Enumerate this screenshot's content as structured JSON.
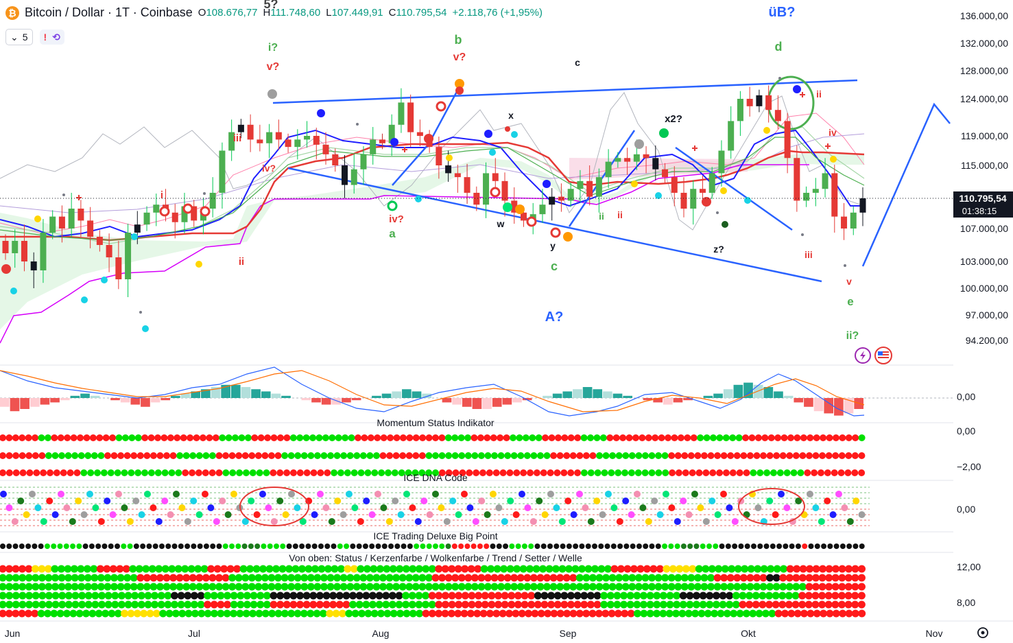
{
  "header": {
    "symbol": "Bitcoin / Dollar · 1T · Coinbase",
    "open_label": "O",
    "open": "108.676,77",
    "high_label": "H",
    "high": "111.748,60",
    "low_label": "L",
    "low": "107.449,91",
    "close_label": "C",
    "close": "110.795,54",
    "change": "+2.118,76 (+1,95%)",
    "indicator_count": "5",
    "icon_alert": "exclamation-icon",
    "icon_sync": "sync-icon"
  },
  "colors": {
    "up": "#089981",
    "down": "#f23645",
    "blue": "#2962ff",
    "green_lbl": "#4caf50",
    "red_lbl": "#e53935",
    "grid": "#f0f3fa"
  },
  "chart_data": [
    {
      "type": "line",
      "name": "price",
      "title": "Bitcoin / Dollar · 1T · Coinbase",
      "x_ticks": [
        "Jun",
        "Jul",
        "Aug",
        "Sep",
        "Okt",
        "Nov"
      ],
      "y_ticks": [
        "136.000,00",
        "132.000,00",
        "128.000,00",
        "124.000,00",
        "119.000,00",
        "115.000,00",
        "107.000,00",
        "103.000,00",
        "100.000,00",
        "97.000,00",
        "94.200,00"
      ],
      "ylim": [
        92000,
        138000
      ],
      "last_price": "110.795,54",
      "countdown": "01:38:15",
      "close_path": [
        104000,
        105500,
        103000,
        102000,
        106500,
        108500,
        107000,
        109500,
        108000,
        106000,
        105000,
        103500,
        101000,
        106500,
        107500,
        109000,
        110000,
        109000,
        107800,
        109800,
        108000,
        109500,
        111500,
        117000,
        119500,
        120500,
        118500,
        118000,
        119500,
        118500,
        117500,
        118500,
        119000,
        117800,
        116500,
        115000,
        112500,
        114500,
        116500,
        118500,
        118000,
        120500,
        123500,
        119500,
        119000,
        117500,
        115000,
        114000,
        113500,
        111500,
        110000,
        114000,
        113000,
        110500,
        109000,
        108000,
        108800,
        110000,
        111000,
        110500,
        112000,
        113000,
        111000,
        113500,
        115500,
        116000,
        115500,
        116500,
        116000,
        114500,
        113500,
        111500,
        109500,
        112000,
        111500,
        114000,
        117000,
        121000,
        124000,
        123000,
        124500,
        122500,
        121000,
        116000,
        110500,
        111500,
        112000,
        114000,
        108500,
        107000,
        109000,
        110795
      ],
      "annotations": [
        {
          "text": "5?",
          "x": 395,
          "y": 12,
          "c": "#444",
          "s": 18
        },
        {
          "text": "i?",
          "x": 398,
          "y": 74,
          "c": "#4caf50",
          "s": 16
        },
        {
          "text": "v?",
          "x": 398,
          "y": 102,
          "c": "#e53935",
          "s": 16
        },
        {
          "text": "iii",
          "x": 346,
          "y": 206,
          "c": "#e53935",
          "s": 15
        },
        {
          "text": "iv?",
          "x": 392,
          "y": 250,
          "c": "#e53935",
          "s": 14
        },
        {
          "text": "i",
          "x": 236,
          "y": 289,
          "c": "#e53935",
          "s": 15
        },
        {
          "text": "ii",
          "x": 352,
          "y": 386,
          "c": "#e53935",
          "s": 15
        },
        {
          "text": "b",
          "x": 668,
          "y": 64,
          "c": "#4caf50",
          "s": 18
        },
        {
          "text": "v?",
          "x": 670,
          "y": 88,
          "c": "#e53935",
          "s": 16
        },
        {
          "text": "c",
          "x": 842,
          "y": 96,
          "c": "#131722",
          "s": 14
        },
        {
          "text": "x",
          "x": 745,
          "y": 173,
          "c": "#131722",
          "s": 14
        },
        {
          "text": "iv?",
          "x": 578,
          "y": 324,
          "c": "#e53935",
          "s": 15
        },
        {
          "text": "a",
          "x": 572,
          "y": 346,
          "c": "#4caf50",
          "s": 17
        },
        {
          "text": "w",
          "x": 730,
          "y": 331,
          "c": "#131722",
          "s": 14
        },
        {
          "text": "y",
          "x": 806,
          "y": 363,
          "c": "#131722",
          "s": 14
        },
        {
          "text": "c",
          "x": 808,
          "y": 394,
          "c": "#4caf50",
          "s": 18
        },
        {
          "text": "A?",
          "x": 808,
          "y": 468,
          "c": "#2962ff",
          "s": 20
        },
        {
          "text": "ii",
          "x": 877,
          "y": 320,
          "c": "#4caf50",
          "s": 14
        },
        {
          "text": "ii",
          "x": 904,
          "y": 318,
          "c": "#e53935",
          "s": 14
        },
        {
          "text": "x2?",
          "x": 982,
          "y": 178,
          "c": "#131722",
          "s": 15
        },
        {
          "text": "z?",
          "x": 1048,
          "y": 368,
          "c": "#131722",
          "s": 14
        },
        {
          "text": "üB?",
          "x": 1140,
          "y": 24,
          "c": "#2962ff",
          "s": 20
        },
        {
          "text": "d",
          "x": 1135,
          "y": 74,
          "c": "#4caf50",
          "s": 18
        },
        {
          "text": "ii",
          "x": 1194,
          "y": 142,
          "c": "#e53935",
          "s": 14
        },
        {
          "text": "iv",
          "x": 1214,
          "y": 198,
          "c": "#e53935",
          "s": 14
        },
        {
          "text": "iii",
          "x": 1179,
          "y": 376,
          "c": "#e53935",
          "s": 14
        },
        {
          "text": "v",
          "x": 1238,
          "y": 415,
          "c": "#e53935",
          "s": 14
        },
        {
          "text": "e",
          "x": 1240,
          "y": 445,
          "c": "#4caf50",
          "s": 17
        },
        {
          "text": "ii?",
          "x": 1243,
          "y": 494,
          "c": "#4caf50",
          "s": 16
        }
      ]
    },
    {
      "type": "bar",
      "name": "macd",
      "y_ticks": [
        "0,00"
      ],
      "hist": [
        -4,
        -6,
        -5,
        -4,
        -3,
        -2,
        -1,
        1,
        2,
        1,
        0,
        -1,
        -2,
        -3,
        -4,
        -2,
        -1,
        1,
        2,
        3,
        4,
        5,
        6,
        6,
        5,
        4,
        3,
        2,
        1,
        0,
        -1,
        -2,
        -3,
        -3,
        -2,
        -1,
        0,
        1,
        2,
        3,
        4,
        3,
        2,
        0,
        -2,
        -3,
        -4,
        -5,
        -5,
        -4,
        -3,
        -2,
        -1,
        0,
        1,
        2,
        3,
        4,
        5,
        4,
        3,
        2,
        1,
        0,
        -1,
        -2,
        -3,
        -2,
        -1,
        0,
        1,
        2,
        4,
        6,
        7,
        6,
        5,
        3,
        1,
        -2,
        -4,
        -6,
        -7,
        -8,
        -7,
        -5
      ]
    },
    {
      "type": "table",
      "name": "momentum-status",
      "title": "Momentum Status Indikator",
      "y_ticks": [
        "0,00",
        "−2,00"
      ],
      "rows": [
        "rrrrrrggrrrrrrrrrrggggrrrrrrrrrrrrgggggrrrrrrggggggggggrrrrrrrrrrrrrrggggrrrrrrgggggrrrrrrggggrrrrrrrrrrrrrrgggggggrrrrrrrrrrrrrrrrrrg",
        "rrrrrrrgggggggggrrrrrrrrrrrggggggrrrrrrrrrrgggggggggggggggrrrrrrrgggggggggggggggggggrrrrrrrgggggggggggrrrrrrrrrrrrrrrrrrrrrrrrrrrrrr",
        "rrrrrrrrrrrrgggggggggggggggrrrrrrgggggggrrrrrrrrrggggggggggggggggrrrrrrrrrrrrrrrrrrrrrgggggggggggggrrrrrrrrrrrrggggggggrrrrrrrrr"
      ]
    },
    {
      "type": "scatter",
      "name": "ice-dna-code",
      "title": "ICE DNA Code",
      "y_ticks": [
        "0,00"
      ]
    },
    {
      "type": "table",
      "name": "ice-trading-deluxe-big-point",
      "title": "ICE Trading Deluxe Big Point",
      "row": "kkkkkkkggggggkkkkkkggkkkkkkkkkkkkkkgggdddggggkkkkkkkkggkkkkkkkkkkgggggdrrrrrrkkkggggkkkkkkkkkkkkkkkkkkkkgggdddgggkkkkkkkkkkkkkrkkkkkkkkk"
    },
    {
      "type": "table",
      "name": "status-rows",
      "title": "Von oben: Status / Kerzenfarbe / Wolkenfarbe / Trend / Setter / Welle",
      "y_ticks": [
        "12,00",
        "8,00"
      ],
      "rows": [
        "rrrrryyygggggggrrrrrggggggggggggrrrrrggggggggggggggggyyggggggggggggrrrrrrrggggggggggggggggggggrrrrrrrryyyyyggggggggggggggrrrrrrrrrrrr",
        "gggggggggggggggggggggrrrrrrrrrrrrrrgggggggggggggggggggggggggggggggrrrrrrrrrrrrrrrrrrrrrrgggggggggggggggggggggrrrrrrrrkkrrrrrrrrrrrrr",
        "gggggggggggggggggggggggggggggggggggggggggggggggggggggggggggggggggggggggggggggggggggggggggggggggggggggggggggggggggggggggggggrrrrrrrrr",
        "ggggggggggggggggggggggggggkkkkkggggggggggkkkkkkkkkkkkkkkkkkkkggggrrrrrrrrrrrrrrrrkkkkkkkkkkggggggggggggkkkkkkkkggggggggggrrrrrrrrrr",
        "gggggggggggggggggggggggggggggggrrrrggggggrrrrrrrrrrrrgggggggggggggrrrrrrrrrrrrrrrrrrrrrrrrrgggggggggggggggggggggrrrrrrrrrrrrrrrrrrr",
        "rrrrrrgggggggggggggyyyyyyggggggggggggggggggggggggggyyyggggggggggggrrrrrrrrrrrrrrrrrrrrrrrrrrrrrrrrrggggggggggggggggggggggrrrrrrrrrrrrrr"
      ]
    }
  ],
  "x_axis": {
    "labels": [
      "Jun",
      "Jul",
      "Aug",
      "Sep",
      "Okt",
      "Nov"
    ],
    "icon": "settings-icon"
  },
  "badges": {
    "flash_icon": "flash-icon",
    "flag_icon": "us-flag-icon"
  }
}
